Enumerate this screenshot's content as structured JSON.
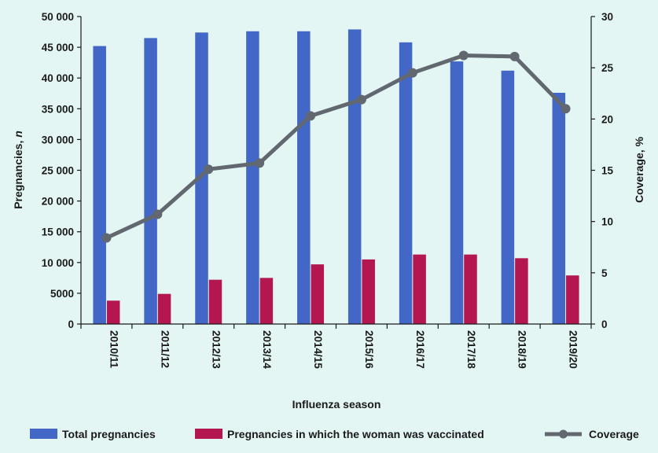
{
  "chart_data": {
    "type": "bar",
    "categories": [
      "2010/11",
      "2011/12",
      "2012/13",
      "2013/14",
      "2014/15",
      "2015/16",
      "2016/17",
      "2017/18",
      "2018/19",
      "2019/20"
    ],
    "series": [
      {
        "name": "Total pregnancies",
        "axis": "left",
        "type": "bar",
        "color": "#4367c6",
        "values": [
          45200,
          46500,
          47400,
          47600,
          47600,
          47900,
          45800,
          42700,
          41200,
          37600
        ]
      },
      {
        "name": "Pregnancies in which the woman was vaccinated",
        "axis": "left",
        "type": "bar",
        "color": "#b4174f",
        "values": [
          3800,
          4900,
          7200,
          7500,
          9700,
          10500,
          11300,
          11300,
          10700,
          7900
        ]
      },
      {
        "name": "Coverage",
        "axis": "right",
        "type": "line",
        "color": "#616870",
        "values": [
          8.4,
          10.7,
          15.1,
          15.7,
          20.3,
          21.9,
          24.5,
          26.2,
          26.1,
          21.0
        ]
      }
    ],
    "xlabel": "Influenza season",
    "ylabel_left": "Pregnancies, n",
    "ylabel_left_main": "Pregnancies, ",
    "ylabel_left_italic": "n",
    "ylabel_right": "Coverage, %",
    "ylim_left": [
      0,
      50000
    ],
    "ylim_right": [
      0,
      30
    ],
    "yticks_left": [
      "0",
      "5000",
      "10 000",
      "15 000",
      "20 000",
      "25 000",
      "30 000",
      "35 000",
      "40 000",
      "45 000",
      "50 000"
    ],
    "yticks_right": [
      "0",
      "5",
      "10",
      "15",
      "20",
      "25",
      "30"
    ],
    "legend_position": "bottom"
  }
}
